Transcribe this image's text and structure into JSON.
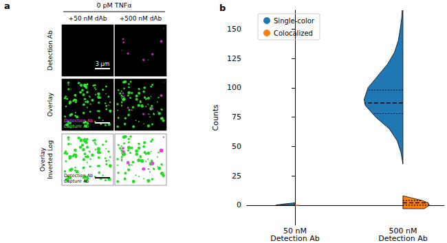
{
  "panel_a": {
    "label": "a",
    "header": "0 pM TNFα",
    "columns": [
      "+50 nM dAb",
      "+500 nM dAb"
    ],
    "rows": [
      [
        "Detection Ab"
      ],
      [
        "Overlay"
      ],
      [
        "Overlay",
        "Inverted Log"
      ]
    ],
    "scale_bar": "3 μm",
    "overlay_legend": [
      "Detection Ab",
      "Capture Ab"
    ]
  },
  "chart_data": {
    "type": "violin",
    "label": "b",
    "categories": [
      "50 nM\nDetection Ab",
      "500 nM\nDetection Ab"
    ],
    "ylabel": "Counts",
    "ylim": [
      -17,
      166
    ],
    "yticks": [
      0,
      25,
      50,
      75,
      100,
      125,
      150
    ],
    "legend": "upper left",
    "series": [
      {
        "name": "Single-color",
        "color": "#1f77b4",
        "values": [
          {
            "y": [
              0,
              1,
              2
            ],
            "density": [
              0.5,
              0.3,
              0
            ]
          },
          {
            "y": [
              35,
              45,
              55,
              65,
              75,
              85,
              90,
              100,
              110,
              120,
              130,
              140,
              150,
              160,
              166
            ],
            "density": [
              0,
              0.05,
              0.15,
              0.35,
              0.7,
              0.97,
              1,
              0.9,
              0.65,
              0.4,
              0.22,
              0.12,
              0.07,
              0.03,
              0.02
            ],
            "quartiles": [
              78,
              87,
              98
            ]
          }
        ]
      },
      {
        "name": "Colocalized",
        "color": "#ff7f0e",
        "values": [
          {
            "y": [
              0
            ],
            "density": [
              0.1
            ]
          },
          {
            "y": [
              -3,
              0,
              2,
              4,
              6,
              8
            ],
            "density": [
              0.55,
              0.68,
              0.65,
              0.5,
              0.25,
              0
            ],
            "quartiles": [
              0,
              2,
              4
            ]
          }
        ]
      }
    ]
  }
}
